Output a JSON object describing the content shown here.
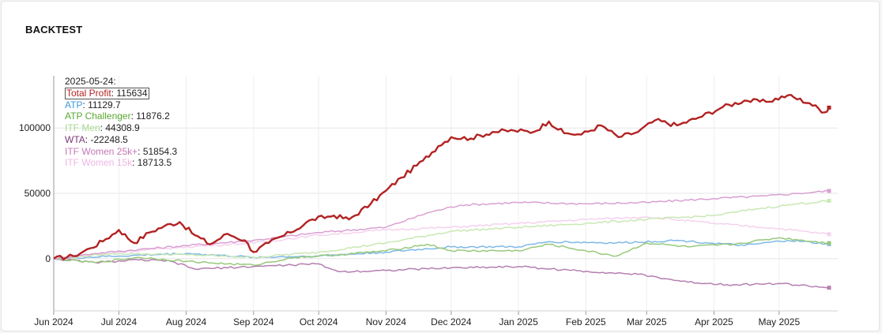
{
  "panel": {
    "title": "BACKTEST"
  },
  "tooltip": {
    "date": "2025-05-24:",
    "rows": [
      {
        "name": "Total Profit",
        "value": "115634",
        "color": "#b22222",
        "highlight": true
      },
      {
        "name": "ATP",
        "value": "11129.7",
        "color": "#3b9ae1"
      },
      {
        "name": "ATP Challenger",
        "value": "11876.2",
        "color": "#5aa832"
      },
      {
        "name": "ITF Men",
        "value": "44308.9",
        "color": "#a8d890"
      },
      {
        "name": "WTA",
        "value": "-22248.5",
        "color": "#7a3a7a"
      },
      {
        "name": "ITF Women 25k+",
        "value": "51854.3",
        "color": "#c478b8"
      },
      {
        "name": "ITF Women 15k",
        "value": "18713.5",
        "color": "#efb6e4"
      }
    ]
  },
  "chart_data": {
    "type": "line",
    "title": "BACKTEST",
    "xlabel": "",
    "ylabel": "",
    "x_ticks": [
      "Jun 2024",
      "Jul 2024",
      "Aug 2024",
      "Sep 2024",
      "Oct 2024",
      "Nov 2024",
      "Dec 2024",
      "Jan 2025",
      "Feb 2025",
      "Mar 2025",
      "Apr 2025",
      "May 2025"
    ],
    "x_range": [
      "2024-06-01",
      "2025-05-28"
    ],
    "y_ticks": [
      0,
      50000,
      100000
    ],
    "ylim": [
      -40000,
      140000
    ],
    "grid": true,
    "series": [
      {
        "name": "Total Profit",
        "color": "#b22222",
        "width": 2.4,
        "points": [
          [
            "2024-06-01",
            0
          ],
          [
            "2024-06-10",
            2000
          ],
          [
            "2024-06-18",
            8000
          ],
          [
            "2024-06-25",
            15000
          ],
          [
            "2024-07-01",
            22000
          ],
          [
            "2024-07-08",
            12000
          ],
          [
            "2024-07-15",
            20000
          ],
          [
            "2024-07-22",
            25000
          ],
          [
            "2024-07-29",
            28000
          ],
          [
            "2024-08-05",
            18000
          ],
          [
            "2024-08-12",
            11000
          ],
          [
            "2024-08-20",
            19000
          ],
          [
            "2024-08-28",
            14000
          ],
          [
            "2024-09-01",
            5000
          ],
          [
            "2024-09-08",
            12000
          ],
          [
            "2024-09-18",
            20000
          ],
          [
            "2024-09-28",
            30000
          ],
          [
            "2024-10-08",
            33000
          ],
          [
            "2024-10-15",
            30000
          ],
          [
            "2024-10-25",
            42000
          ],
          [
            "2024-11-01",
            52000
          ],
          [
            "2024-11-08",
            62000
          ],
          [
            "2024-11-18",
            75000
          ],
          [
            "2024-11-25",
            86000
          ],
          [
            "2024-12-01",
            93000
          ],
          [
            "2024-12-10",
            92000
          ],
          [
            "2024-12-20",
            97000
          ],
          [
            "2024-12-30",
            98000
          ],
          [
            "2025-01-08",
            97000
          ],
          [
            "2025-01-15",
            105000
          ],
          [
            "2025-01-22",
            96000
          ],
          [
            "2025-01-30",
            95000
          ],
          [
            "2025-02-08",
            102000
          ],
          [
            "2025-02-16",
            93000
          ],
          [
            "2025-02-25",
            97000
          ],
          [
            "2025-03-05",
            106000
          ],
          [
            "2025-03-15",
            102000
          ],
          [
            "2025-03-25",
            108000
          ],
          [
            "2025-04-05",
            116000
          ],
          [
            "2025-04-15",
            121000
          ],
          [
            "2025-04-25",
            120000
          ],
          [
            "2025-05-05",
            125000
          ],
          [
            "2025-05-15",
            119000
          ],
          [
            "2025-05-22",
            112000
          ],
          [
            "2025-05-24",
            115634
          ]
        ]
      },
      {
        "name": "ITF Women 25k+",
        "color": "#d9a0d2",
        "width": 1.5,
        "points": [
          [
            "2024-06-01",
            0
          ],
          [
            "2024-06-20",
            4000
          ],
          [
            "2024-07-10",
            7000
          ],
          [
            "2024-08-01",
            10000
          ],
          [
            "2024-09-01",
            14000
          ],
          [
            "2024-10-01",
            20000
          ],
          [
            "2024-11-01",
            24000
          ],
          [
            "2024-11-20",
            35000
          ],
          [
            "2024-12-05",
            41000
          ],
          [
            "2025-01-01",
            43000
          ],
          [
            "2025-02-01",
            42000
          ],
          [
            "2025-03-01",
            43000
          ],
          [
            "2025-04-01",
            46000
          ],
          [
            "2025-04-25",
            48000
          ],
          [
            "2025-05-10",
            50000
          ],
          [
            "2025-05-24",
            51854.3
          ]
        ]
      },
      {
        "name": "ITF Men",
        "color": "#c9e8b4",
        "width": 1.5,
        "points": [
          [
            "2024-06-01",
            0
          ],
          [
            "2024-07-01",
            4000
          ],
          [
            "2024-08-01",
            3000
          ],
          [
            "2024-09-01",
            1000
          ],
          [
            "2024-10-01",
            5000
          ],
          [
            "2024-11-01",
            12000
          ],
          [
            "2024-12-01",
            21000
          ],
          [
            "2025-01-01",
            24000
          ],
          [
            "2025-02-01",
            27000
          ],
          [
            "2025-03-01",
            30000
          ],
          [
            "2025-04-01",
            33000
          ],
          [
            "2025-04-20",
            38000
          ],
          [
            "2025-05-10",
            42000
          ],
          [
            "2025-05-24",
            44308.9
          ]
        ]
      },
      {
        "name": "ITF Women 15k",
        "color": "#f4d2ee",
        "width": 1.5,
        "points": [
          [
            "2024-06-01",
            0
          ],
          [
            "2024-07-01",
            5000
          ],
          [
            "2024-08-01",
            9000
          ],
          [
            "2024-09-01",
            12000
          ],
          [
            "2024-10-01",
            18000
          ],
          [
            "2024-11-01",
            22000
          ],
          [
            "2024-12-01",
            24000
          ],
          [
            "2025-01-01",
            27000
          ],
          [
            "2025-02-01",
            30000
          ],
          [
            "2025-03-01",
            32000
          ],
          [
            "2025-04-01",
            27000
          ],
          [
            "2025-05-01",
            23000
          ],
          [
            "2025-05-24",
            18713.5
          ]
        ]
      },
      {
        "name": "ATP Challenger",
        "color": "#96c97a",
        "width": 1.5,
        "points": [
          [
            "2024-06-01",
            0
          ],
          [
            "2024-06-20",
            -3000
          ],
          [
            "2024-07-10",
            1000
          ],
          [
            "2024-08-01",
            -2000
          ],
          [
            "2024-08-20",
            -4000
          ],
          [
            "2024-09-01",
            -5000
          ],
          [
            "2024-09-20",
            1000
          ],
          [
            "2024-10-10",
            3000
          ],
          [
            "2024-11-01",
            6000
          ],
          [
            "2024-11-20",
            11000
          ],
          [
            "2024-12-01",
            6000
          ],
          [
            "2025-01-01",
            6000
          ],
          [
            "2025-01-15",
            11000
          ],
          [
            "2025-02-01",
            6000
          ],
          [
            "2025-02-15",
            2000
          ],
          [
            "2025-03-01",
            12000
          ],
          [
            "2025-03-20",
            9000
          ],
          [
            "2025-04-10",
            11000
          ],
          [
            "2025-05-01",
            16000
          ],
          [
            "2025-05-24",
            11876.2
          ]
        ]
      },
      {
        "name": "ATP",
        "color": "#7fb8e6",
        "width": 1.5,
        "points": [
          [
            "2024-06-01",
            0
          ],
          [
            "2024-07-01",
            2000
          ],
          [
            "2024-08-01",
            4000
          ],
          [
            "2024-09-01",
            1000
          ],
          [
            "2024-10-01",
            2000
          ],
          [
            "2024-11-01",
            5000
          ],
          [
            "2024-12-01",
            9000
          ],
          [
            "2025-01-01",
            9000
          ],
          [
            "2025-01-15",
            13000
          ],
          [
            "2025-02-15",
            12000
          ],
          [
            "2025-03-15",
            14000
          ],
          [
            "2025-04-15",
            10000
          ],
          [
            "2025-05-05",
            14000
          ],
          [
            "2025-05-24",
            11129.7
          ]
        ]
      },
      {
        "name": "WTA",
        "color": "#b57fb0",
        "width": 1.5,
        "points": [
          [
            "2024-06-01",
            0
          ],
          [
            "2024-06-20",
            -3000
          ],
          [
            "2024-07-10",
            -1000
          ],
          [
            "2024-07-25",
            -2000
          ],
          [
            "2024-08-05",
            -8000
          ],
          [
            "2024-09-01",
            -6000
          ],
          [
            "2024-10-01",
            -4000
          ],
          [
            "2024-10-10",
            -10000
          ],
          [
            "2024-11-01",
            -9000
          ],
          [
            "2024-12-01",
            -7000
          ],
          [
            "2025-01-01",
            -6000
          ],
          [
            "2025-01-25",
            -9000
          ],
          [
            "2025-02-25",
            -12000
          ],
          [
            "2025-03-20",
            -18000
          ],
          [
            "2025-04-10",
            -20000
          ],
          [
            "2025-05-01",
            -19000
          ],
          [
            "2025-05-24",
            -22248.5
          ]
        ]
      }
    ]
  }
}
